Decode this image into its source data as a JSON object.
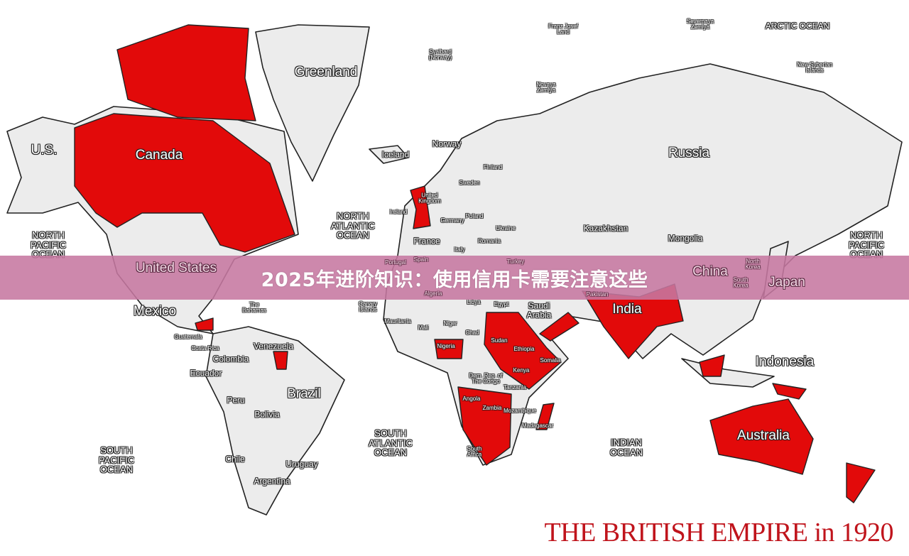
{
  "colors": {
    "british_territory": "#e20a0a",
    "land": "#ececec",
    "banner": "#c678a0",
    "title": "#c0141c"
  },
  "banner": {
    "text": "2025年进阶知识：使用信用卡需要注意这些"
  },
  "map_title": "THE BRITISH EMPIRE  in 1920",
  "labels": {
    "franz_josef": "Franz Josef\nLand",
    "severnaya": "Severnaya\nZemlya",
    "arctic": "ARCTIC OCEAN",
    "svalbard": "Svalbard\n(Norway)",
    "greenland": "Greenland",
    "new_syberian": "New Syberian\nIslands",
    "novaya": "Novaya\nZemlya",
    "us": "U.S.",
    "canada": "Canada",
    "iceland": "Iceland",
    "norway": "Norway",
    "finland": "Finland",
    "russia": "Russia",
    "sweden": "Sweden",
    "uk": "United\nKingdom",
    "ireland": "Ireland",
    "north_atlantic": "NORTH\nATLANTIC\nOCEAN",
    "poland": "Poland",
    "germany": "Germany",
    "ukraine": "Ukraine",
    "kazakhstan": "Kazakhstan",
    "mongolia": "Mongolia",
    "france": "France",
    "romania": "Romania",
    "north_pacific_w": "NORTH\nPACIFIC\nOCEAN",
    "north_pacific_e": "NORTH\nPACIFIC\nOCEAN",
    "united_states": "United States",
    "portugal": "Portugal",
    "spain": "Spain",
    "italy": "Italy",
    "turkey": "Turkey",
    "china": "China",
    "north_korea": "North\nKorea",
    "south_korea": "South\nKorea",
    "japan": "Japan",
    "algeria": "Algeria",
    "pakistan": "Pakistan",
    "libya": "Libya",
    "egypt": "Egypt",
    "saudi": "Saudi\nArabia",
    "india": "India",
    "mexico": "Mexico",
    "bahamas": "The\nBahamas",
    "canary": "Canary\nIslands",
    "mauritania": "Mauritania",
    "niger": "Niger",
    "mali": "Mali",
    "chad": "Chad",
    "guatemala": "Guatemala",
    "venezuela": "Venezuela",
    "sudan": "Sudan",
    "costa_rica": "Costa Rica",
    "nigeria": "Nigeria",
    "ethiopia": "Ethiopia",
    "colombia": "Colombia",
    "somalia": "Somalia",
    "indonesia": "Indonesia",
    "ecuador": "Ecuador",
    "kenya": "Kenya",
    "drc": "Dem. Rep. of\nThe Congo",
    "tanzania": "Tanzania",
    "brazil": "Brazil",
    "angola": "Angola",
    "peru": "Peru",
    "zambia": "Zambia",
    "mozambique": "Mozambique",
    "bolivia": "Bolivia",
    "madagascar": "Madagascar",
    "south_atlantic": "SOUTH\nATLANTIC\nOCEAN",
    "australia": "Australia",
    "indian_ocean": "INDIAN\nOCEAN",
    "south_pacific": "SOUTH\nPACIFIC\nOCEAN",
    "south_africa": "South\nAfrica",
    "chile": "Chile",
    "uruguay": "Uruguay",
    "argentina": "Argentina"
  }
}
